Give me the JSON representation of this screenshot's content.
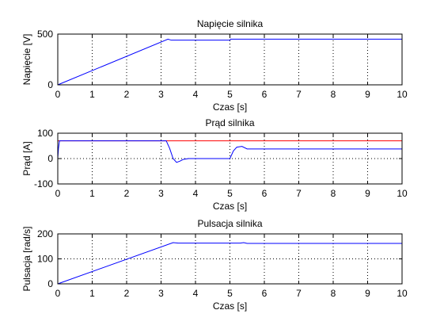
{
  "colors": {
    "background": "#ffffff",
    "axes": "#000000",
    "grid": "#000000",
    "series_blue": "#0000ff",
    "series_red": "#ff0000"
  },
  "chart_data": [
    {
      "type": "line",
      "title": "Napięcie silnika",
      "xlabel": "Czas [s]",
      "ylabel": "Napięcie [V]",
      "xlim": [
        0,
        10
      ],
      "ylim": [
        0,
        500
      ],
      "xticks": [
        0,
        1,
        2,
        3,
        4,
        5,
        6,
        7,
        8,
        9,
        10
      ],
      "yticks": [
        0,
        500
      ],
      "grid": true,
      "series": [
        {
          "color": "#0000ff",
          "x": [
            0,
            3.2,
            3.3,
            3.5,
            5.0,
            5.02,
            5.05,
            10
          ],
          "y": [
            0,
            450,
            440,
            440,
            440,
            450,
            450,
            450
          ]
        }
      ]
    },
    {
      "type": "line",
      "title": "Prąd silnika",
      "xlabel": "Czas [s]",
      "ylabel": "Prąd [A]",
      "xlim": [
        0,
        10
      ],
      "ylim": [
        -100,
        100
      ],
      "xticks": [
        0,
        1,
        2,
        3,
        4,
        5,
        6,
        7,
        8,
        9,
        10
      ],
      "yticks": [
        -100,
        0,
        100
      ],
      "grid": true,
      "series": [
        {
          "color": "#ff0000",
          "x": [
            0,
            10
          ],
          "y": [
            70,
            70
          ]
        },
        {
          "color": "#0000ff",
          "x": [
            0,
            0.02,
            0.05,
            0.1,
            3.15,
            3.25,
            3.35,
            3.45,
            3.55,
            3.65,
            3.8,
            5.0,
            5.1,
            5.2,
            5.35,
            5.5,
            5.7,
            10
          ],
          "y": [
            0,
            40,
            70,
            70,
            70,
            40,
            0,
            -15,
            -10,
            -3,
            0,
            0,
            30,
            45,
            48,
            38,
            38,
            38
          ]
        }
      ]
    },
    {
      "type": "line",
      "title": "Pulsacja silnika",
      "xlabel": "Czas [s]",
      "ylabel": "Pulsacja [rad/s]",
      "xlim": [
        0,
        10
      ],
      "ylim": [
        0,
        200
      ],
      "xticks": [
        0,
        1,
        2,
        3,
        4,
        5,
        6,
        7,
        8,
        9,
        10
      ],
      "yticks": [
        0,
        100,
        200
      ],
      "grid": true,
      "series": [
        {
          "color": "#0000ff",
          "x": [
            0,
            3.35,
            3.5,
            5.3,
            5.4,
            5.5,
            10
          ],
          "y": [
            0,
            165,
            163,
            163,
            165,
            162,
            162
          ]
        }
      ]
    }
  ]
}
